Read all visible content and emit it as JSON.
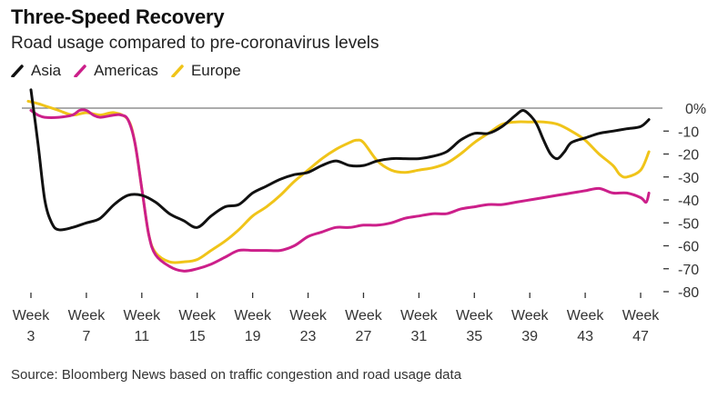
{
  "title": "Three-Speed Recovery",
  "subtitle": "Road usage compared to pre-coronavirus levels",
  "source": "Source: Bloomberg News based on traffic congestion and road usage data",
  "colors": {
    "asia": "#111111",
    "americas": "#cc1f8a",
    "europe": "#f0c419",
    "zero_line": "#7a7a7a",
    "tick": "#333333"
  },
  "chart_data": {
    "type": "line",
    "title": "Three-Speed Recovery",
    "subtitle": "Road usage compared to pre-coronavirus levels",
    "xlabel": "",
    "ylabel": "",
    "x_tick_labels": [
      {
        "week": 3,
        "line1": "Week",
        "line2": "3"
      },
      {
        "week": 7,
        "line1": "Week",
        "line2": "7"
      },
      {
        "week": 11,
        "line1": "Week",
        "line2": "11"
      },
      {
        "week": 15,
        "line1": "Week",
        "line2": "15"
      },
      {
        "week": 19,
        "line1": "Week",
        "line2": "19"
      },
      {
        "week": 23,
        "line1": "Week",
        "line2": "23"
      },
      {
        "week": 27,
        "line1": "Week",
        "line2": "27"
      },
      {
        "week": 31,
        "line1": "Week",
        "line2": "31"
      },
      {
        "week": 35,
        "line1": "Week",
        "line2": "35"
      },
      {
        "week": 39,
        "line1": "Week",
        "line2": "39"
      },
      {
        "week": 43,
        "line1": "Week",
        "line2": "43"
      },
      {
        "week": 47,
        "line1": "Week",
        "line2": "47"
      }
    ],
    "y_ticks": [
      {
        "value": 0,
        "label": "0%"
      },
      {
        "value": -10,
        "label": "-10"
      },
      {
        "value": -20,
        "label": "-20"
      },
      {
        "value": -30,
        "label": "-30"
      },
      {
        "value": -40,
        "label": "-40"
      },
      {
        "value": -50,
        "label": "-50"
      },
      {
        "value": -60,
        "label": "-60"
      },
      {
        "value": -70,
        "label": "-70"
      },
      {
        "value": -80,
        "label": "-80"
      }
    ],
    "xlim": [
      3,
      48
    ],
    "ylim": [
      -80,
      0
    ],
    "grid": false,
    "legend_position": "top-left",
    "series": [
      {
        "name": "Asia",
        "key": "asia",
        "x": [
          3,
          3.5,
          4,
          4.5,
          5,
          6,
          7,
          8,
          9,
          10,
          11,
          12,
          13,
          14,
          15,
          16,
          17,
          18,
          19,
          20,
          21,
          22,
          23,
          24,
          25,
          26,
          27,
          28,
          29,
          30,
          31,
          32,
          33,
          34,
          35,
          36,
          37,
          38,
          38.5,
          39,
          39.5,
          40,
          40.5,
          41,
          41.5,
          42,
          43,
          44,
          45,
          46,
          47,
          47.6
        ],
        "values": [
          8,
          -15,
          -40,
          -50,
          -53,
          -52,
          -50,
          -48,
          -42,
          -38,
          -38,
          -41,
          -46,
          -49,
          -52,
          -47,
          -43,
          -42,
          -37,
          -34,
          -31,
          -29,
          -28,
          -25,
          -23,
          -25,
          -25,
          -23,
          -22,
          -22,
          -22,
          -21,
          -19,
          -14,
          -11,
          -11,
          -8,
          -3,
          -1,
          -3,
          -7,
          -14,
          -20,
          -22,
          -19,
          -15,
          -13,
          -11,
          -10,
          -9,
          -8,
          -5
        ]
      },
      {
        "name": "Americas",
        "key": "americas",
        "x": [
          3,
          3.5,
          4,
          5,
          6,
          6.5,
          7,
          7.5,
          8,
          9,
          9.5,
          10,
          10.5,
          11,
          11.5,
          12,
          13,
          14,
          15,
          16,
          17,
          18,
          19,
          20,
          21,
          22,
          23,
          24,
          25,
          26,
          27,
          28,
          29,
          30,
          31,
          32,
          33,
          34,
          35,
          36,
          37,
          38,
          39,
          40,
          41,
          42,
          43,
          44,
          45,
          46,
          47,
          47.4,
          47.6
        ],
        "values": [
          -1,
          -3,
          -4,
          -4,
          -3,
          -1,
          -1,
          -3,
          -4,
          -3,
          -3,
          -5,
          -15,
          -35,
          -55,
          -64,
          -69,
          -71,
          -70,
          -68,
          -65,
          -62,
          -62,
          -62,
          -62,
          -60,
          -56,
          -54,
          -52,
          -52,
          -51,
          -51,
          -50,
          -48,
          -47,
          -46,
          -46,
          -44,
          -43,
          -42,
          -42,
          -41,
          -40,
          -39,
          -38,
          -37,
          -36,
          -35,
          -37,
          -37,
          -39,
          -41,
          -37
        ]
      },
      {
        "name": "Europe",
        "key": "europe",
        "x": [
          2.8,
          3.5,
          4,
          5,
          6,
          7,
          8,
          9,
          10,
          10.5,
          11,
          11.5,
          12,
          13,
          14,
          15,
          16,
          17,
          18,
          19,
          20,
          21,
          22,
          23,
          24,
          25,
          26,
          26.5,
          27,
          28,
          29,
          30,
          31,
          32,
          33,
          34,
          35,
          36,
          37,
          38,
          39,
          40,
          41,
          42,
          43,
          44,
          45,
          45.5,
          46,
          47,
          47.6
        ],
        "values": [
          3,
          2,
          1,
          -1,
          -3,
          -2,
          -3,
          -2,
          -5,
          -15,
          -35,
          -55,
          -63,
          -67,
          -67,
          -66,
          -62,
          -58,
          -53,
          -47,
          -43,
          -38,
          -32,
          -27,
          -22,
          -18,
          -15,
          -14,
          -15,
          -23,
          -27,
          -28,
          -27,
          -26,
          -24,
          -20,
          -15,
          -11,
          -7,
          -6,
          -6,
          -6,
          -7,
          -10,
          -14,
          -20,
          -25,
          -29,
          -30,
          -27,
          -19
        ]
      }
    ]
  }
}
